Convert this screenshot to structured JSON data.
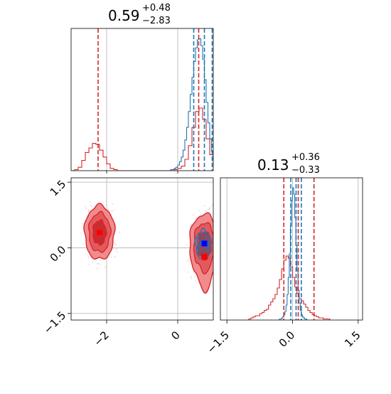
{
  "chart_data": {
    "type": "corner",
    "parameters": [
      {
        "title_value": "0.59",
        "title_upper": "+0.48",
        "title_lower": "−2.83",
        "red_quantiles": [
          -2.24,
          0.59,
          1.07
        ],
        "blue_quantiles": [
          0.45,
          0.75,
          0.97
        ],
        "blue_hist": {
          "x_start": -0.2,
          "bin": 0.05,
          "counts": [
            1,
            1,
            2,
            3,
            5,
            8,
            12,
            18,
            27,
            38,
            52,
            67,
            82,
            96,
            108,
            115,
            116,
            110,
            98,
            80,
            60,
            42,
            28,
            17,
            9,
            5,
            3,
            2,
            1
          ]
        },
        "red_hist": {
          "x_start": -3.0,
          "bin": 0.1,
          "counts": [
            0,
            1,
            3,
            9,
            16,
            20,
            24,
            23,
            18,
            12,
            6,
            2,
            1,
            0,
            0,
            0,
            0,
            0,
            0,
            0,
            0,
            0,
            0,
            0,
            0,
            0,
            0,
            0,
            0,
            1,
            2,
            4,
            10,
            22,
            38,
            52,
            55,
            45,
            28,
            14,
            7,
            3,
            1,
            0,
            1
          ]
        }
      },
      {
        "title_value": "0.13",
        "title_upper": "+0.36",
        "title_lower": "−0.33",
        "red_quantiles": [
          -0.2,
          0.13,
          0.49
        ],
        "blue_quantiles": [
          -0.04,
          0.08,
          0.2
        ],
        "blue_hist": {
          "x_start": -0.3,
          "bin": 0.025,
          "counts": [
            1,
            1,
            2,
            3,
            5,
            8,
            14,
            24,
            40,
            62,
            88,
            112,
            124,
            118,
            96,
            70,
            46,
            28,
            16,
            9,
            5,
            3,
            2,
            1,
            1
          ]
        },
        "red_hist": {
          "x_start": -1.0,
          "bin": 0.05,
          "counts": [
            1,
            2,
            3,
            4,
            4,
            6,
            7,
            9,
            10,
            14,
            17,
            20,
            24,
            30,
            38,
            48,
            56,
            60,
            58,
            50,
            40,
            31,
            25,
            20,
            18,
            15,
            12,
            9,
            7,
            5,
            4,
            3,
            2,
            2,
            1,
            1,
            1
          ]
        }
      }
    ],
    "scatter_2d": {
      "red_modes": [
        {
          "x": -2.2,
          "y": 0.35,
          "rx": 0.42,
          "ry": 0.62
        },
        {
          "x": 0.75,
          "y": 0.05,
          "rx": 0.42,
          "ry": 0.72
        }
      ],
      "red_marker": {
        "x": 0.75,
        "y": -0.2
      },
      "blue_marker": {
        "x": 0.75,
        "y": 0.1
      },
      "blue_center": {
        "x": 0.72,
        "y": 0.08,
        "rx": 0.2,
        "ry": 0.3
      }
    },
    "axes": {
      "p1_range": [
        -3.0,
        1.0
      ],
      "p2_range": [
        -1.65,
        1.6
      ],
      "p1_ticks": [
        -2,
        0
      ],
      "p1_tick_labels": [
        "−2",
        "0"
      ],
      "p2_ticks_y": [
        1.5,
        0.0,
        -1.5
      ],
      "p2_ticks_y_labels": [
        "1.5",
        "0.0",
        "−1.5"
      ],
      "p2_ticks_x": [
        -1.5,
        0.0,
        1.5
      ],
      "p2_ticks_x_labels": [
        "−1.5",
        "0.0",
        "1.5"
      ]
    },
    "colors": {
      "red": "#d62728",
      "blue": "#1f77b4",
      "fill_light": "#f08b8e",
      "fill_mid": "#e35a5e",
      "fill_dark": "#c92d31"
    },
    "grid": true,
    "legend": "none"
  }
}
